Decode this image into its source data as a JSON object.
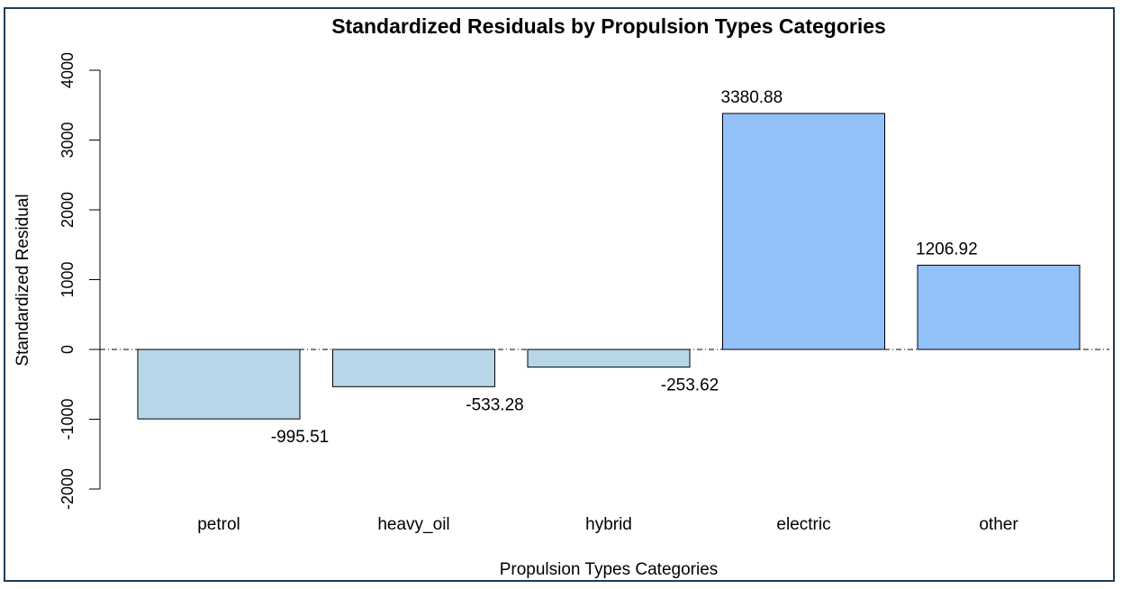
{
  "chart_data": {
    "type": "bar",
    "title": "Standardized Residuals by Propulsion Types Categories",
    "xlabel": "Propulsion Types Categories",
    "ylabel": "Standardized Residual",
    "categories": [
      "petrol",
      "heavy_oil",
      "hybrid",
      "electric",
      "other"
    ],
    "values": [
      -995.51,
      -533.28,
      -253.62,
      3380.88,
      1206.92
    ],
    "data_labels": [
      "-995.51",
      "-533.28",
      "-253.62",
      "3380.88",
      "1206.92"
    ],
    "ylim": [
      -2000,
      4000
    ],
    "yticks": [
      -2000,
      -1000,
      0,
      1000,
      2000,
      3000,
      4000
    ],
    "ytick_labels": [
      "-2000",
      "-1000",
      "0",
      "1000",
      "2000",
      "3000",
      "4000"
    ],
    "reference_line": 0,
    "grid": false,
    "legend": "none",
    "colors": {
      "negative": "#b7d7e8",
      "positive": "#92c2f9",
      "frame": "#1f3b57"
    }
  }
}
